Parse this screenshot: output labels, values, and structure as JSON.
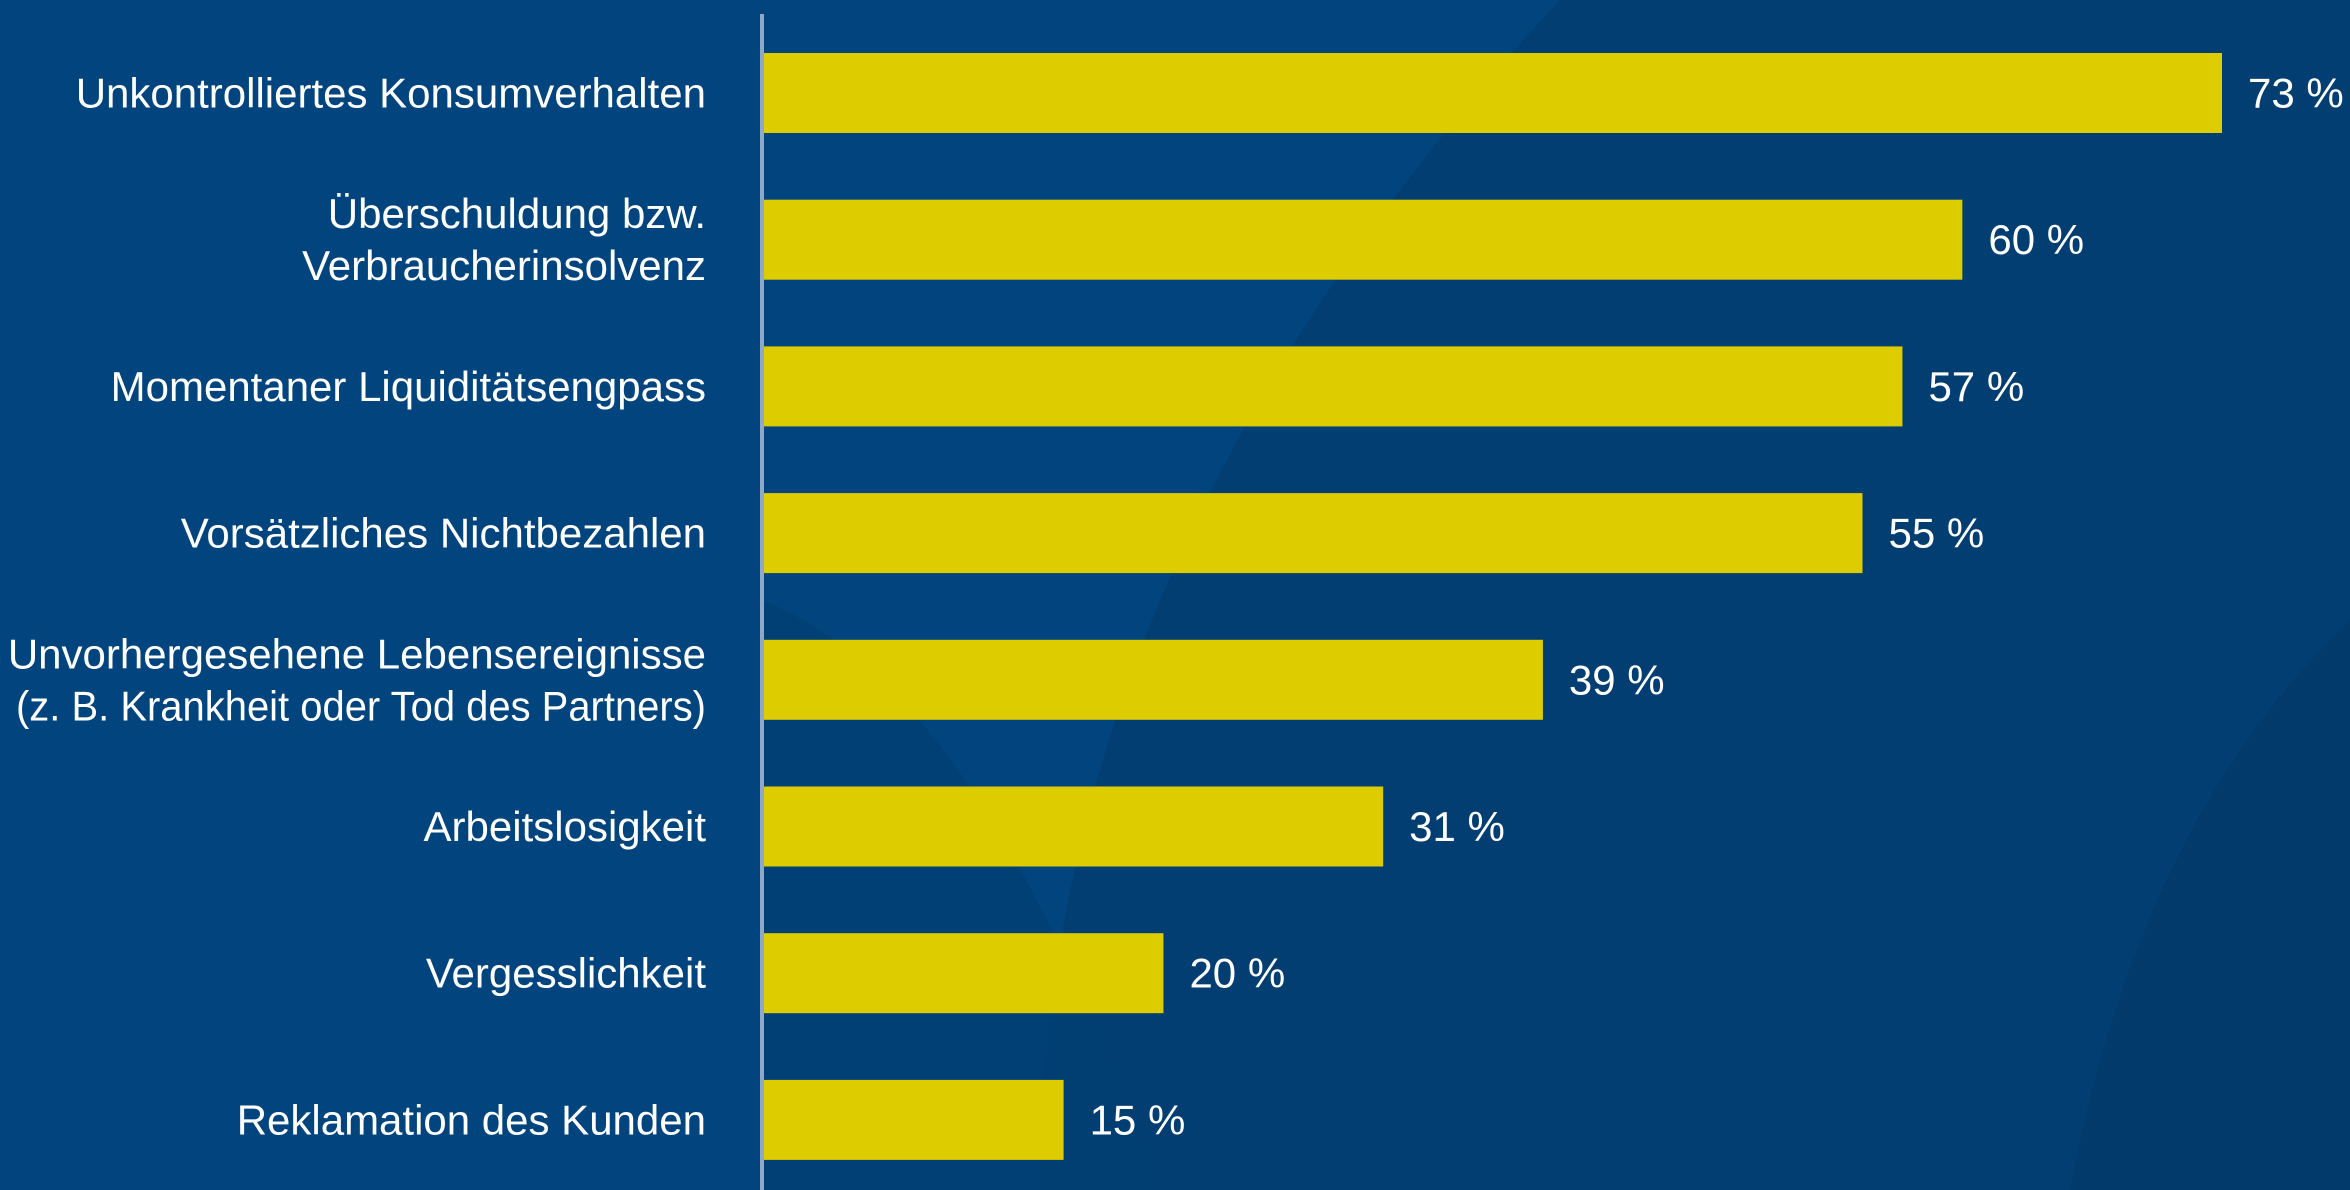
{
  "chart_data": {
    "type": "bar",
    "orientation": "horizontal",
    "categories": [
      [
        "Unkontrolliertes Konsumverhalten"
      ],
      [
        "Überschuldung bzw.",
        "Verbraucherinsolvenz"
      ],
      [
        "Momentaner Liquiditätsengpass"
      ],
      [
        "Vorsätzliches Nichtbezahlen"
      ],
      [
        "Unvorhergesehene Lebensereignisse",
        "(z. B. Krankheit oder Tod des Partners)"
      ],
      [
        "Arbeitslosigkeit"
      ],
      [
        "Vergesslichkeit"
      ],
      [
        "Reklamation des Kunden"
      ]
    ],
    "values": [
      73,
      60,
      57,
      55,
      39,
      31,
      20,
      15
    ],
    "value_labels": [
      "73 %",
      "60 %",
      "57 %",
      "55 %",
      "39 %",
      "31 %",
      "20 %",
      "15 %"
    ],
    "xlim": [
      0,
      73
    ],
    "grid": false,
    "legend": "none"
  },
  "colors": {
    "background": "#01447e",
    "background_shape": "#023e72",
    "bar": "#dccc00",
    "axis": "#8fa8c8",
    "text": "#ffffff"
  }
}
